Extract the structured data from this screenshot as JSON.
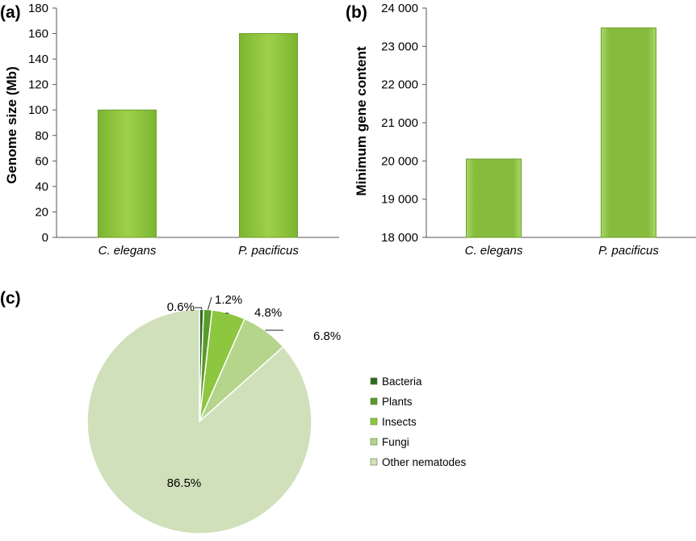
{
  "panels": {
    "a": "(a)",
    "b": "(b)",
    "c": "(c)"
  },
  "chart_data": [
    {
      "type": "bar",
      "panel": "(a)",
      "title": "",
      "xlabel": "",
      "ylabel": "Genome size (Mb)",
      "categories": [
        "C. elegans",
        "P. pacificus"
      ],
      "values": [
        100,
        160
      ],
      "ylim": [
        0,
        180
      ],
      "yticks": [
        "0",
        "20",
        "40",
        "60",
        "80",
        "100",
        "120",
        "140",
        "160",
        "180"
      ],
      "bar_color": "#8fc43c",
      "grid": false
    },
    {
      "type": "bar",
      "panel": "(b)",
      "title": "",
      "xlabel": "",
      "ylabel": "Minimum gene content",
      "categories": [
        "C. elegans",
        "P. pacificus"
      ],
      "values": [
        20050,
        23480
      ],
      "ylim": [
        18000,
        24000
      ],
      "yticks": [
        "18 000",
        "19 000",
        "20 000",
        "21 000",
        "22 000",
        "23 000",
        "24 000"
      ],
      "bar_color": "#8fc43c",
      "grid": false
    },
    {
      "type": "pie",
      "panel": "(c)",
      "title": "",
      "slices": [
        {
          "name": "Bacteria",
          "value": 0.6,
          "label": "0.6%",
          "color": "#2f6b22"
        },
        {
          "name": "Plants",
          "value": 1.2,
          "label": "1.2%",
          "color": "#5a9a2a"
        },
        {
          "name": "Insects",
          "value": 4.8,
          "label": "4.8%",
          "color": "#8dc63f"
        },
        {
          "name": "Fungi",
          "value": 6.8,
          "label": "6.8%",
          "color": "#b4d58a"
        },
        {
          "name": "Other nematodes",
          "value": 86.5,
          "label": "86.5%",
          "color": "#cfe0ba"
        }
      ],
      "legend_position": "right"
    }
  ]
}
